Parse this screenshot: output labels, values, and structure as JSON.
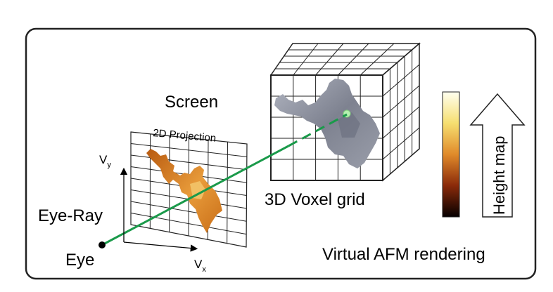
{
  "screen_label": "Screen",
  "projection_label": "2D Projection",
  "vy_label_main": "V",
  "vy_label_sub": "y",
  "vx_label_main": "V",
  "vx_label_sub": "x",
  "eye_ray_label": "Eye-Ray",
  "eye_label": "Eye",
  "voxel_label": "3D Voxel grid",
  "height_map_label": "Height map",
  "footer_label": "Virtual AFM rendering",
  "colors": {
    "ray": "#1a9a4a",
    "frame": "#222222",
    "molecule_gray": "#8a8e9a",
    "molecule_orange": "#d4801e"
  }
}
